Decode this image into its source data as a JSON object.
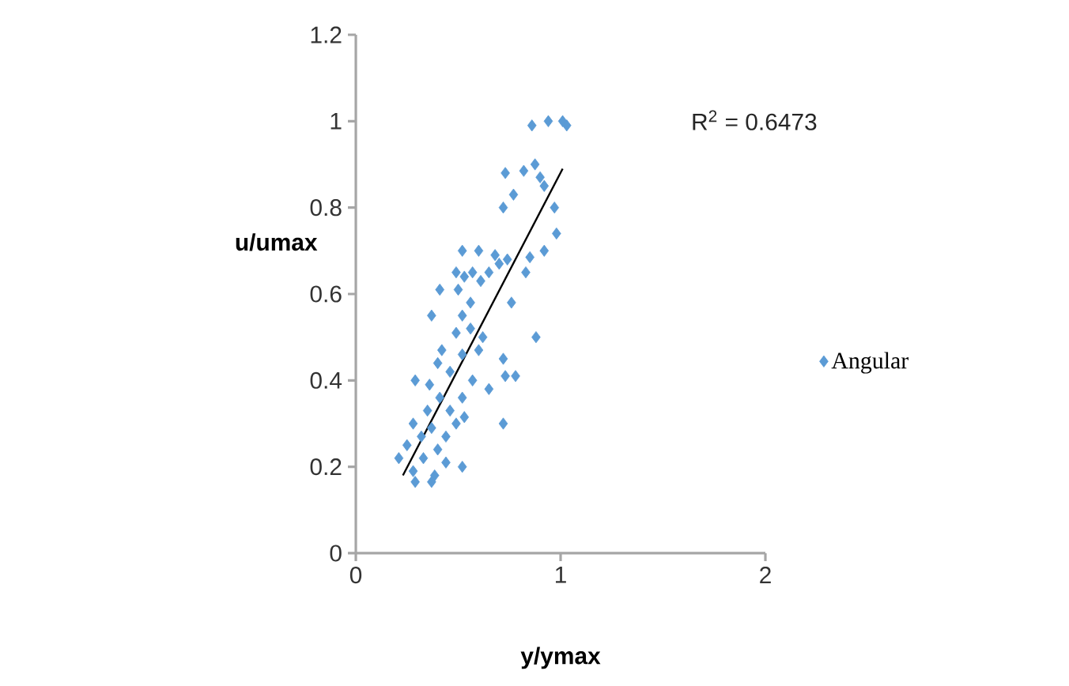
{
  "chart_data": {
    "type": "scatter",
    "xlabel": "y/ymax",
    "ylabel": "u/umax",
    "xlim": [
      0,
      2
    ],
    "ylim": [
      0,
      1.2
    ],
    "xticks": [
      0,
      1,
      2
    ],
    "yticks": [
      0,
      0.2,
      0.4,
      0.6,
      0.8,
      1,
      1.2
    ],
    "grid": false,
    "legend": "right",
    "marker": "diamond",
    "annotations": [
      "R$^{2}$ = 0.6473"
    ],
    "series": [
      {
        "name": "Angular",
        "color": "#5b9bd5",
        "x": [
          0.86,
          0.94,
          1.01,
          1.03,
          0.875,
          0.82,
          0.73,
          0.9,
          0.92,
          0.77,
          0.72,
          0.97,
          0.98,
          0.92,
          0.85,
          0.83,
          0.52,
          0.6,
          0.68,
          0.74,
          0.49,
          0.57,
          0.65,
          0.7,
          0.61,
          0.53,
          0.41,
          0.5,
          0.56,
          0.76,
          0.37,
          0.52,
          0.56,
          0.62,
          0.88,
          0.49,
          0.42,
          0.52,
          0.6,
          0.72,
          0.4,
          0.46,
          0.73,
          0.78,
          0.29,
          0.36,
          0.57,
          0.65,
          0.41,
          0.52,
          0.35,
          0.46,
          0.53,
          0.28,
          0.37,
          0.49,
          0.72,
          0.32,
          0.44,
          0.25,
          0.4,
          0.21,
          0.33,
          0.44,
          0.52,
          0.28,
          0.385,
          0.29,
          0.37
        ],
        "values": [
          0.99,
          1.0,
          1.0,
          0.99,
          0.9,
          0.885,
          0.88,
          0.87,
          0.85,
          0.83,
          0.8,
          0.8,
          0.74,
          0.7,
          0.685,
          0.65,
          0.7,
          0.7,
          0.69,
          0.68,
          0.65,
          0.65,
          0.65,
          0.67,
          0.63,
          0.64,
          0.61,
          0.61,
          0.58,
          0.58,
          0.55,
          0.55,
          0.52,
          0.5,
          0.5,
          0.51,
          0.47,
          0.46,
          0.47,
          0.45,
          0.44,
          0.42,
          0.41,
          0.41,
          0.4,
          0.39,
          0.4,
          0.38,
          0.36,
          0.36,
          0.33,
          0.33,
          0.315,
          0.3,
          0.29,
          0.3,
          0.3,
          0.27,
          0.27,
          0.25,
          0.24,
          0.22,
          0.22,
          0.21,
          0.2,
          0.19,
          0.18,
          0.165,
          0.165
        ]
      },
      {
        "type": "line",
        "marker": "none",
        "color": "#000000",
        "x": [
          0.23,
          1.01
        ],
        "values": [
          0.18,
          0.89
        ]
      }
    ]
  }
}
